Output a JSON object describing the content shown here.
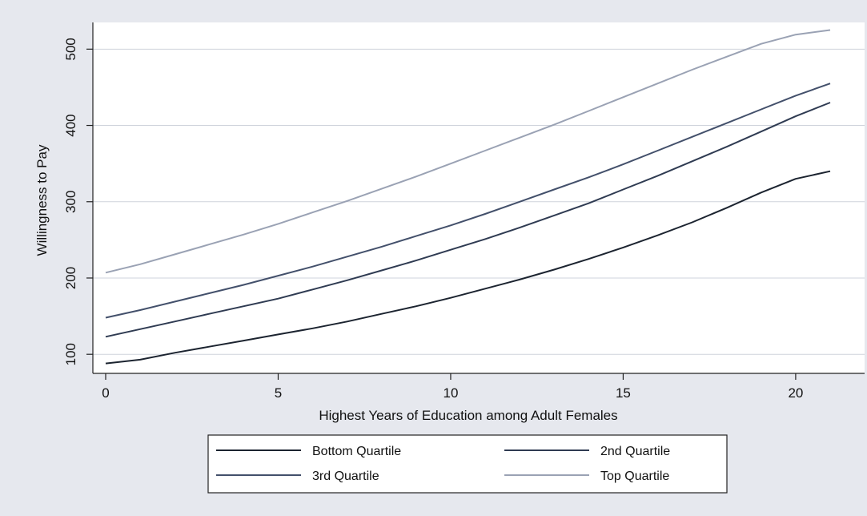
{
  "chart_data": {
    "type": "line",
    "title": "",
    "xlabel": "Highest Years of Education among Adult Females",
    "ylabel": "Willingness to Pay",
    "xlim": [
      0,
      21
    ],
    "ylim": [
      75,
      535
    ],
    "xticks": [
      0,
      5,
      10,
      15,
      20
    ],
    "yticks": [
      100,
      200,
      300,
      400,
      500
    ],
    "grid": "horizontal",
    "legend": "bottom",
    "x": [
      0,
      1,
      2,
      3,
      4,
      5,
      6,
      7,
      8,
      9,
      10,
      11,
      12,
      13,
      14,
      15,
      16,
      17,
      18,
      19,
      20,
      21
    ],
    "series": [
      {
        "name": "Bottom Quartile",
        "color": "#1c2430",
        "values": [
          88,
          93,
          102,
          110,
          118,
          126,
          134,
          143,
          153,
          163,
          174,
          186,
          198,
          211,
          225,
          240,
          256,
          273,
          292,
          312,
          330,
          340
        ]
      },
      {
        "name": "2nd Quartile",
        "color": "#2f3b52",
        "values": [
          123,
          133,
          143,
          153,
          163,
          173,
          185,
          197,
          210,
          223,
          237,
          251,
          266,
          282,
          298,
          316,
          334,
          353,
          372,
          392,
          412,
          430
        ]
      },
      {
        "name": "3rd Quartile",
        "color": "#43506b",
        "values": [
          148,
          158,
          169,
          180,
          191,
          203,
          215,
          228,
          241,
          255,
          269,
          284,
          300,
          316,
          332,
          349,
          367,
          385,
          403,
          421,
          439,
          455
        ]
      },
      {
        "name": "Top Quartile",
        "color": "#9aa2b4",
        "values": [
          207,
          218,
          231,
          244,
          257,
          271,
          286,
          301,
          317,
          333,
          350,
          367,
          384,
          401,
          419,
          437,
          455,
          473,
          490,
          507,
          519,
          525
        ]
      }
    ]
  }
}
